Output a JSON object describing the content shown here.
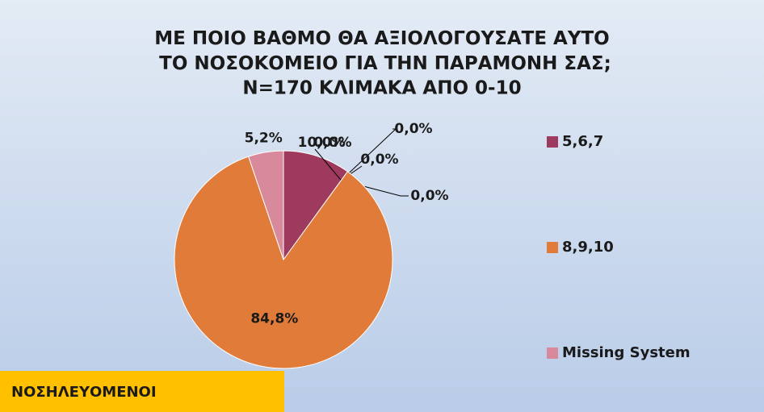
{
  "chart_data": {
    "type": "pie",
    "title": "ΜΕ ΠΟΙΟ ΒΑΘΜΟ ΘΑ ΑΞΙΟΛΟΓΟΥΣΑΤΕ ΑΥΤΟ ΤΟ ΝΟΣΟΚΟΜΕΙΟ ΓΙΑ ΤΗΝ ΠΑΡΑΜΟΝΗ ΣΑΣ;",
    "subtitle": "N=170  ΚΛΙΜΑΚΑ ΑΠΟ 0-10",
    "categories": [
      "5,6,7",
      null,
      null,
      null,
      null,
      "8,9,10",
      "Missing System"
    ],
    "values": [
      10.0,
      0,
      0,
      0,
      0,
      84.8,
      5.2
    ],
    "value_labels": [
      "10,0%",
      "0,0%",
      "0,0%",
      "0,0%",
      "0,0%",
      "84,8%",
      "5,2%"
    ],
    "colors": [
      "#9e3a5d",
      "#4f81bd",
      "#4f81bd",
      "#4f81bd",
      "#4f81bd",
      "#e07b39",
      "#d8899b"
    ],
    "legend": "right",
    "annotation": "ΝΟΣΗΛΕΥΟΜΕΝΟΙ"
  }
}
